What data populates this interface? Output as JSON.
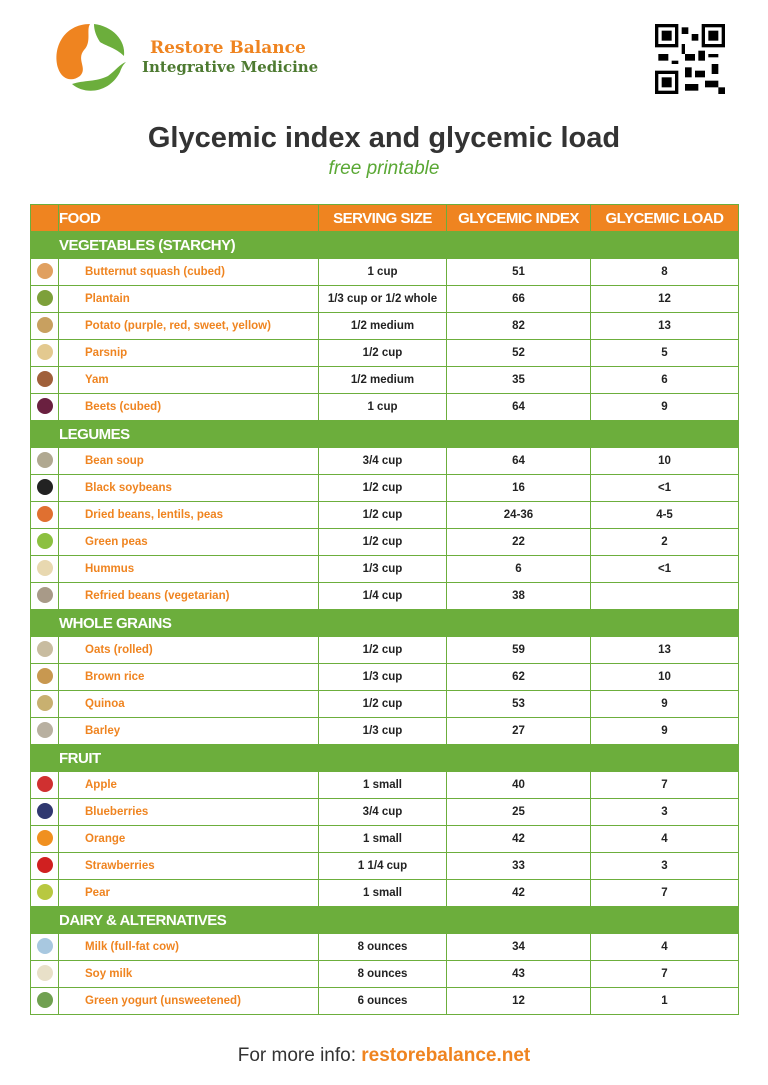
{
  "brand": {
    "line1": "Restore Balance",
    "line2": "Integrative Medicine"
  },
  "title": "Glycemic index and glycemic load",
  "subtitle": "free printable",
  "columns": [
    "FOOD",
    "SERVING SIZE",
    "GLYCEMIC INDEX",
    "GLYCEMIC LOAD"
  ],
  "colors": {
    "orange": "#ef8420",
    "green": "#6cae3c"
  },
  "categories": [
    {
      "name": "VEGETABLES (STARCHY)",
      "rows": [
        {
          "food": "Butternut squash (cubed)",
          "serving": "1 cup",
          "gi": "51",
          "gl": "8",
          "icon": "butternut-squash-icon",
          "color": "#e0a060"
        },
        {
          "food": "Plantain",
          "serving": "1/3 cup or 1/2 whole",
          "gi": "66",
          "gl": "12",
          "icon": "plantain-icon",
          "color": "#7da03a"
        },
        {
          "food": "Potato (purple, red, sweet, yellow)",
          "serving": "1/2 medium",
          "gi": "82",
          "gl": "13",
          "icon": "potato-icon",
          "color": "#c8a060"
        },
        {
          "food": "Parsnip",
          "serving": "1/2 cup",
          "gi": "52",
          "gl": "5",
          "icon": "parsnip-icon",
          "color": "#e3c98f"
        },
        {
          "food": "Yam",
          "serving": "1/2 medium",
          "gi": "35",
          "gl": "6",
          "icon": "yam-icon",
          "color": "#a0603a"
        },
        {
          "food": "Beets (cubed)",
          "serving": "1 cup",
          "gi": "64",
          "gl": "9",
          "icon": "beets-icon",
          "color": "#6a2040"
        }
      ]
    },
    {
      "name": "LEGUMES",
      "rows": [
        {
          "food": "Bean soup",
          "serving": "3/4 cup",
          "gi": "64",
          "gl": "10",
          "icon": "bean-soup-icon",
          "color": "#b0a890"
        },
        {
          "food": "Black soybeans",
          "serving": "1/2 cup",
          "gi": "16",
          "gl": "<1",
          "icon": "black-soybeans-icon",
          "color": "#222"
        },
        {
          "food": "Dried beans, lentils, peas",
          "serving": "1/2 cup",
          "gi": "24-36",
          "gl": "4-5",
          "icon": "lentils-icon",
          "color": "#e07030"
        },
        {
          "food": "Green peas",
          "serving": "1/2 cup",
          "gi": "22",
          "gl": "2",
          "icon": "green-peas-icon",
          "color": "#8cc040"
        },
        {
          "food": "Hummus",
          "serving": "1/3 cup",
          "gi": "6",
          "gl": "<1",
          "icon": "hummus-icon",
          "color": "#e8d8b0"
        },
        {
          "food": "Refried beans (vegetarian)",
          "serving": "1/4 cup",
          "gi": "38",
          "gl": "",
          "icon": "refried-beans-icon",
          "color": "#a89a88"
        }
      ]
    },
    {
      "name": "WHOLE GRAINS",
      "rows": [
        {
          "food": "Oats (rolled)",
          "serving": "1/2 cup",
          "gi": "59",
          "gl": "13",
          "icon": "oats-icon",
          "color": "#c8bca0"
        },
        {
          "food": "Brown rice",
          "serving": "1/3 cup",
          "gi": "62",
          "gl": "10",
          "icon": "brown-rice-icon",
          "color": "#c89850"
        },
        {
          "food": "Quinoa",
          "serving": "1/2 cup",
          "gi": "53",
          "gl": "9",
          "icon": "quinoa-icon",
          "color": "#c8b070"
        },
        {
          "food": "Barley",
          "serving": "1/3 cup",
          "gi": "27",
          "gl": "9",
          "icon": "barley-icon",
          "color": "#b8b0a0"
        }
      ]
    },
    {
      "name": "FRUIT",
      "rows": [
        {
          "food": "Apple",
          "serving": "1 small",
          "gi": "40",
          "gl": "7",
          "icon": "apple-icon",
          "color": "#d03030"
        },
        {
          "food": "Blueberries",
          "serving": "3/4 cup",
          "gi": "25",
          "gl": "3",
          "icon": "blueberries-icon",
          "color": "#303870"
        },
        {
          "food": "Orange",
          "serving": "1 small",
          "gi": "42",
          "gl": "4",
          "icon": "orange-icon",
          "color": "#f09020"
        },
        {
          "food": "Strawberries",
          "serving": "1 1/4 cup",
          "gi": "33",
          "gl": "3",
          "icon": "strawberries-icon",
          "color": "#d02020"
        },
        {
          "food": "Pear",
          "serving": "1 small",
          "gi": "42",
          "gl": "7",
          "icon": "pear-icon",
          "color": "#b8c840"
        }
      ]
    },
    {
      "name": "DAIRY & ALTERNATIVES",
      "rows": [
        {
          "food": "Milk (full-fat cow)",
          "serving": "8 ounces",
          "gi": "34",
          "gl": "4",
          "icon": "milk-icon",
          "color": "#a8c8e0"
        },
        {
          "food": "Soy milk",
          "serving": "8 ounces",
          "gi": "43",
          "gl": "7",
          "icon": "soy-milk-icon",
          "color": "#e8e0c8"
        },
        {
          "food": "Green yogurt (unsweetened)",
          "serving": "6 ounces",
          "gi": "12",
          "gl": "1",
          "icon": "yogurt-icon",
          "color": "#70a050"
        }
      ]
    }
  ],
  "footer": {
    "label": "For more info:",
    "link": "restorebalance.net"
  }
}
